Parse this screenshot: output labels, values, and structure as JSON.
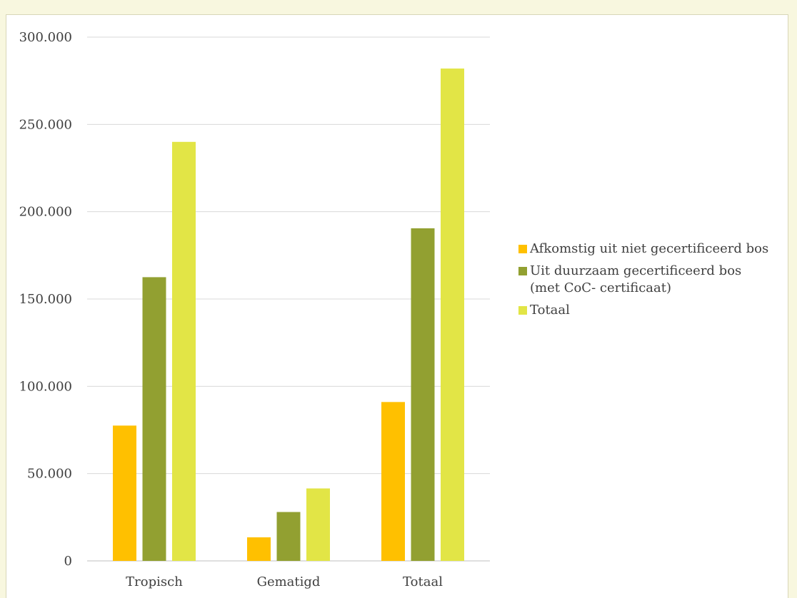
{
  "chart_data": {
    "type": "bar",
    "categories": [
      "Tropisch",
      "Gematigd",
      "Totaal"
    ],
    "series": [
      {
        "name": "Afkomstig uit niet gecertificeerd bos",
        "values": [
          77500,
          13500,
          91000
        ],
        "color": "#ffc000"
      },
      {
        "name": "Uit duurzaam gecertificeerd bos (met CoC- certificaat)",
        "values": [
          162500,
          28000,
          190500
        ],
        "color": "#92a031"
      },
      {
        "name": "Totaal",
        "values": [
          240000,
          41500,
          282000
        ],
        "color": "#e2e546"
      }
    ],
    "ylim": [
      0,
      300000
    ],
    "yticks": [
      0,
      50000,
      100000,
      150000,
      200000,
      250000,
      300000
    ],
    "ytick_labels": [
      "0",
      "50.000",
      "100.000",
      "150.000",
      "200.000",
      "250.000",
      "300.000"
    ],
    "grid": true,
    "legend_position": "right"
  }
}
